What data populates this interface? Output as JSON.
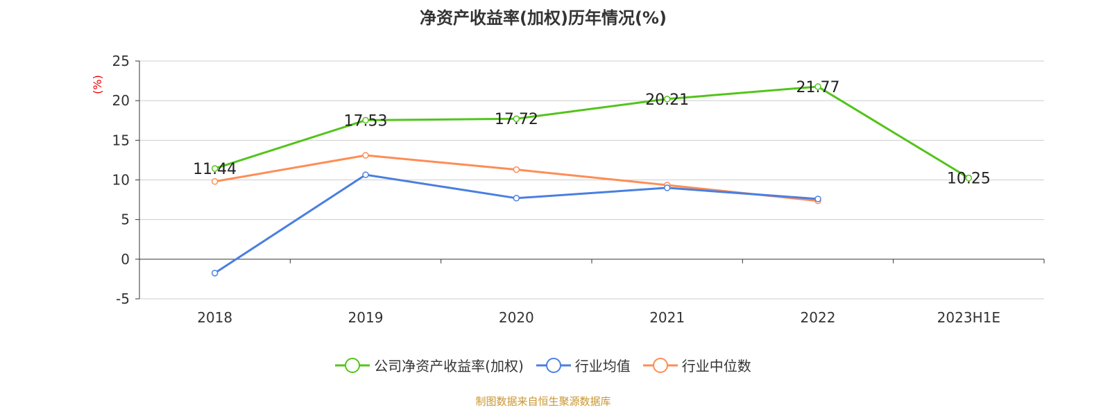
{
  "chart_data": {
    "type": "line",
    "title": "净资产收益率(加权)历年情况(%)",
    "ylabel": "(%)",
    "categories": [
      "2018",
      "2019",
      "2020",
      "2021",
      "2022",
      "2023H1E"
    ],
    "ylim": [
      -5,
      25
    ],
    "yticks": [
      -5,
      0,
      5,
      10,
      15,
      20,
      25
    ],
    "grid": true,
    "legend_position": "bottom",
    "series": [
      {
        "name": "公司净资产收益率(加权)",
        "color": "#52c41a",
        "values": [
          11.44,
          17.53,
          17.72,
          20.21,
          21.77,
          10.25
        ],
        "labels": [
          "11.44",
          "17.53",
          "17.72",
          "20.21",
          "21.77",
          "10.25"
        ]
      },
      {
        "name": "行业均值",
        "color": "#4a7fe0",
        "values": [
          -1.75,
          10.65,
          7.7,
          9.0,
          7.6,
          null
        ]
      },
      {
        "name": "行业中位数",
        "color": "#ff8c55",
        "values": [
          9.8,
          13.1,
          11.3,
          9.35,
          7.35,
          null
        ]
      }
    ]
  },
  "footer": "制图数据来自恒生聚源数据库"
}
